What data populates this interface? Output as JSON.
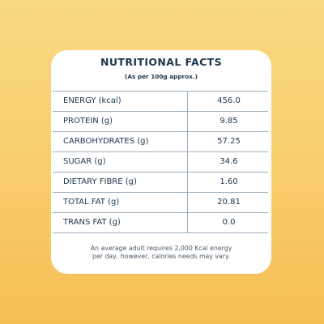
{
  "panel": {
    "title": "NUTRITIONAL FACTS",
    "subtitle": "(As per 100g approx.)",
    "rows": [
      {
        "label": "ENERGY (kcal)",
        "value": "456.0"
      },
      {
        "label": "PROTEIN (g)",
        "value": "9.85"
      },
      {
        "label": "CARBOHYDRATES (g)",
        "value": "57.25"
      },
      {
        "label": "SUGAR (g)",
        "value": "34.6"
      },
      {
        "label": "DIETARY FIBRE (g)",
        "value": "1.60"
      },
      {
        "label": "TOTAL FAT (g)",
        "value": "20.81"
      },
      {
        "label": "TRANS FAT (g)",
        "value": "0.0"
      }
    ],
    "footnote_line1": "An average adult requires 2,000 Kcal energy",
    "footnote_line2": "per day, however, calories needs may vary."
  },
  "colors": {
    "background_top": "#f9d983",
    "background_bottom": "#f5be55",
    "card": "#ffffff",
    "text": "#21374f",
    "rule": "#9eaebd"
  }
}
